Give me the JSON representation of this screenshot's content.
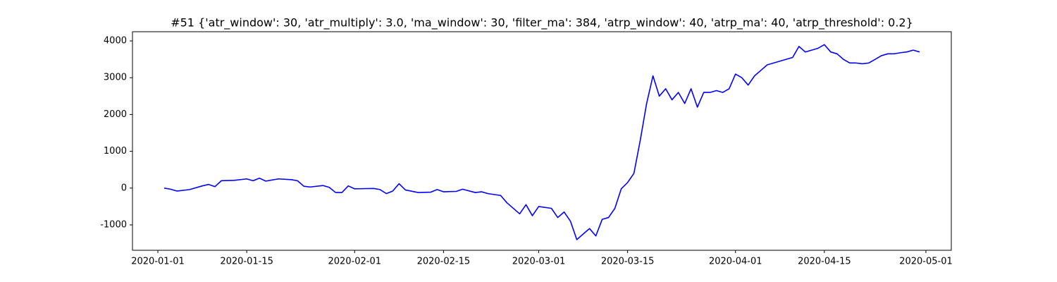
{
  "chart_data": {
    "type": "line",
    "title": "#51 {'atr_window': 30, 'atr_multiply': 3.0, 'ma_window': 30, 'filter_ma': 384, 'atrp_window': 40, 'atrp_ma': 40, 'atrp_threshold': 0.2}",
    "x": [
      "2020-01-02",
      "2020-01-03",
      "2020-01-04",
      "2020-01-06",
      "2020-01-08",
      "2020-01-09",
      "2020-01-10",
      "2020-01-11",
      "2020-01-13",
      "2020-01-15",
      "2020-01-16",
      "2020-01-17",
      "2020-01-18",
      "2020-01-20",
      "2020-01-22",
      "2020-01-23",
      "2020-01-24",
      "2020-01-25",
      "2020-01-27",
      "2020-01-28",
      "2020-01-29",
      "2020-01-30",
      "2020-01-31",
      "2020-02-01",
      "2020-02-04",
      "2020-02-05",
      "2020-02-06",
      "2020-02-07",
      "2020-02-08",
      "2020-02-09",
      "2020-02-11",
      "2020-02-13",
      "2020-02-14",
      "2020-02-15",
      "2020-02-17",
      "2020-02-18",
      "2020-02-20",
      "2020-02-21",
      "2020-02-22",
      "2020-02-24",
      "2020-02-25",
      "2020-02-27",
      "2020-02-28",
      "2020-02-29",
      "2020-03-01",
      "2020-03-03",
      "2020-03-04",
      "2020-03-05",
      "2020-03-06",
      "2020-03-07",
      "2020-03-08",
      "2020-03-09",
      "2020-03-10",
      "2020-03-11",
      "2020-03-12",
      "2020-03-13",
      "2020-03-14",
      "2020-03-15",
      "2020-03-16",
      "2020-03-17",
      "2020-03-18",
      "2020-03-19",
      "2020-03-20",
      "2020-03-21",
      "2020-03-22",
      "2020-03-23",
      "2020-03-24",
      "2020-03-25",
      "2020-03-26",
      "2020-03-27",
      "2020-03-28",
      "2020-03-29",
      "2020-03-30",
      "2020-03-31",
      "2020-04-01",
      "2020-04-02",
      "2020-04-03",
      "2020-04-04",
      "2020-04-05",
      "2020-04-06",
      "2020-04-07",
      "2020-04-08",
      "2020-04-09",
      "2020-04-10",
      "2020-04-11",
      "2020-04-12",
      "2020-04-13",
      "2020-04-14",
      "2020-04-15",
      "2020-04-16",
      "2020-04-17",
      "2020-04-18",
      "2020-04-19",
      "2020-04-20",
      "2020-04-21",
      "2020-04-22",
      "2020-04-23",
      "2020-04-24",
      "2020-04-25",
      "2020-04-26",
      "2020-04-27",
      "2020-04-28",
      "2020-04-29",
      "2020-04-30"
    ],
    "series": [
      {
        "color": "#0000ff",
        "values": [
          0,
          -30,
          -80,
          -40,
          60,
          100,
          40,
          200,
          210,
          250,
          200,
          270,
          190,
          250,
          230,
          200,
          50,
          30,
          70,
          20,
          -120,
          -120,
          60,
          -20,
          -10,
          -40,
          -150,
          -80,
          120,
          -50,
          -120,
          -110,
          -40,
          -100,
          -90,
          -30,
          -120,
          -100,
          -150,
          -200,
          -400,
          -700,
          -450,
          -750,
          -500,
          -550,
          -800,
          -650,
          -900,
          -1400,
          -1250,
          -1100,
          -1300,
          -850,
          -800,
          -550,
          -20,
          150,
          400,
          1300,
          2300,
          3050,
          2500,
          2700,
          2400,
          2600,
          2300,
          2700,
          2200,
          2600,
          2600,
          2650,
          2600,
          2700,
          3100,
          3000,
          2800,
          3050,
          3200,
          3350,
          3400,
          3450,
          3500,
          3550,
          3850,
          3700,
          3750,
          3800,
          3900,
          3700,
          3650,
          3500,
          3400,
          3400,
          3380,
          3400,
          3500,
          3600,
          3650,
          3650,
          3680,
          3700,
          3750,
          3700
        ]
      }
    ],
    "xlim": [
      "2019-12-28",
      "2020-05-05"
    ],
    "xticks": [
      "2020-01-01",
      "2020-01-15",
      "2020-02-01",
      "2020-02-15",
      "2020-03-01",
      "2020-03-15",
      "2020-04-01",
      "2020-04-15",
      "2020-05-01"
    ],
    "ylim": [
      -1690,
      4250
    ],
    "yticks": [
      -1000,
      0,
      1000,
      2000,
      3000,
      4000
    ]
  }
}
